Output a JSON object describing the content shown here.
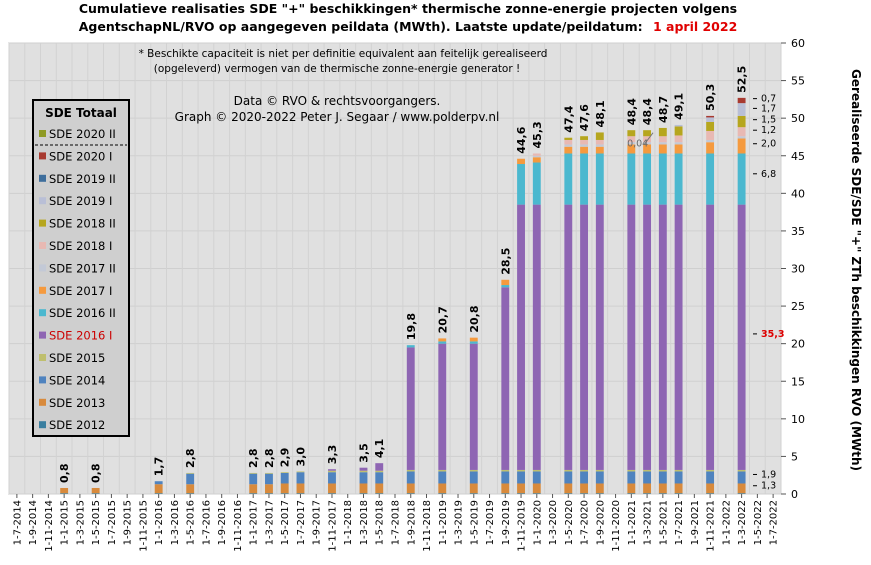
{
  "title_line1": "Cumulatieve realisaties SDE \"+\" beschikkingen*  thermische zonne-energie projecten volgens",
  "title_line2": "AgentschapNL/RVO  op aangegeven peildata (MWth).  Laatste update/peildatum:",
  "update_date": "1 april 2022",
  "note_line1": "* Beschikte capaciteit is niet per definitie equivalent aan feitelijk gerealiseerd",
  "note_line2": "(opgeleverd) vermogen van de thermische zonne-energie generator !",
  "credit_line1": "Data © RVO & rechtsvoorgangers.",
  "credit_line2": "Graph  © 2020-2022  Peter J. Segaar / www.polderpv.nl",
  "colors": {
    "SDE 2012": "#3a7fa0",
    "SDE 2013": "#d88a3c",
    "SDE 2014": "#4f83bf",
    "SDE 2015": "#bfbf6e",
    "SDE 2016 I": "#8e65b3",
    "SDE 2016 II": "#4bb8cf",
    "SDE 2017 I": "#f59a3e",
    "SDE 2017 II": "#c3c9d6",
    "SDE 2018 I": "#e8b9b3",
    "SDE 2018 II": "#b6a61e",
    "SDE 2019 I": "#b9bfd6",
    "SDE 2019 II": "#3e6e9c",
    "SDE 2020 I": "#a83a30",
    "SDE 2020 II": "#8e9a24"
  },
  "chart_data": {
    "type": "bar",
    "stacked": true,
    "x": [
      "1-7-2014",
      "1-9-2014",
      "1-11-2014",
      "1-1-2015",
      "1-3-2015",
      "1-5-2015",
      "1-7-2015",
      "1-9-2015",
      "1-11-2015",
      "1-1-2016",
      "1-3-2016",
      "1-5-2016",
      "1-7-2016",
      "1-9-2016",
      "1-11-2016",
      "1-1-2017",
      "1-3-2017",
      "1-5-2017",
      "1-7-2017",
      "1-9-2017",
      "1-11-2017",
      "1-1-2018",
      "1-3-2018",
      "1-5-2018",
      "1-7-2018",
      "1-9-2018",
      "1-11-2018",
      "1-1-2019",
      "1-3-2019",
      "1-5-2019",
      "1-7-2019",
      "1-9-2019",
      "1-11-2019",
      "1-1-2020",
      "1-3-2020",
      "1-5-2020",
      "1-7-2020",
      "1-9-2020",
      "1-11-2020",
      "1-1-2021",
      "1-3-2021",
      "1-5-2021",
      "1-7-2021",
      "1-9-2021",
      "1-11-2021",
      "1-1-2022",
      "1-3-2022",
      "1-5-2022",
      "1-7-2022"
    ],
    "ylabel": "Gerealiseerde SDE/SDE \"+\" ZTh beschikkingen RVO (MWth)",
    "ylim": [
      0,
      60
    ],
    "yticks": [
      0,
      5,
      10,
      15,
      20,
      25,
      30,
      35,
      40,
      45,
      50,
      55,
      60
    ],
    "grid": true,
    "legend_title": "SDE Totaal",
    "legend": [
      "SDE 2020 II",
      "SDE 2020 I",
      "SDE 2019 II",
      "SDE 2019 I",
      "SDE 2018 II",
      "SDE 2018 I",
      "SDE 2017 II",
      "SDE 2017 I",
      "SDE 2016 II",
      "SDE 2016 I",
      "SDE 2015",
      "SDE 2014",
      "SDE 2013",
      "SDE 2012"
    ],
    "legend_placement": "top-left",
    "stack_order": [
      "SDE 2012",
      "SDE 2013",
      "SDE 2014",
      "SDE 2015",
      "SDE 2016 I",
      "SDE 2016 II",
      "SDE 2017 I",
      "SDE 2017 II",
      "SDE 2018 I",
      "SDE 2018 II",
      "SDE 2019 I",
      "SDE 2019 II",
      "SDE 2020 I",
      "SDE 2020 II"
    ],
    "bars": [
      {
        "x": "1-1-2015",
        "total": "0,8",
        "segments": [
          0.1,
          0.7
        ]
      },
      {
        "x": "1-5-2015",
        "total": "0,8",
        "segments": [
          0.1,
          0.7
        ]
      },
      {
        "x": "1-1-2016",
        "total": "1,7",
        "segments": [
          0.1,
          1.2,
          0.4
        ]
      },
      {
        "x": "1-5-2016",
        "total": "2,8",
        "segments": [
          0.1,
          1.2,
          1.4,
          0.1
        ]
      },
      {
        "x": "1-1-2017",
        "total": "2,8",
        "segments": [
          0.1,
          1.2,
          1.4,
          0.1
        ]
      },
      {
        "x": "1-3-2017",
        "total": "2,8",
        "segments": [
          0.1,
          1.2,
          1.4,
          0.1
        ]
      },
      {
        "x": "1-5-2017",
        "total": "2,9",
        "segments": [
          0.1,
          1.3,
          1.4,
          0.1
        ]
      },
      {
        "x": "1-7-2017",
        "total": "3,0",
        "segments": [
          0.1,
          1.3,
          1.5,
          0.1
        ]
      },
      {
        "x": "1-11-2017",
        "total": "3,3",
        "segments": [
          0.1,
          1.3,
          1.5,
          0.2,
          0.2
        ]
      },
      {
        "x": "1-3-2018",
        "total": "3,5",
        "segments": [
          0.1,
          1.3,
          1.5,
          0.2,
          0.4
        ]
      },
      {
        "x": "1-5-2018",
        "total": "4,1",
        "segments": [
          0.1,
          1.3,
          1.5,
          0.2,
          1.0
        ]
      },
      {
        "x": "1-9-2018",
        "total": "19,8",
        "segments": [
          0.1,
          1.3,
          1.6,
          0.2,
          16.3,
          0.3
        ]
      },
      {
        "x": "1-1-2019",
        "total": "20,7",
        "segments": [
          0.1,
          1.3,
          1.6,
          0.2,
          16.8,
          0.3,
          0.4
        ]
      },
      {
        "x": "1-5-2019",
        "total": "20,8",
        "segments": [
          0.1,
          1.3,
          1.6,
          0.2,
          16.8,
          0.3,
          0.5
        ]
      },
      {
        "x": "1-9-2019",
        "total": "28,5",
        "segments": [
          0.1,
          1.3,
          1.6,
          0.2,
          24.3,
          0.3,
          0.7
        ]
      },
      {
        "x": "1-11-2019",
        "total": "44,6",
        "segments": [
          0.1,
          1.3,
          1.6,
          0.2,
          35.3,
          5.4,
          0.7
        ]
      },
      {
        "x": "1-1-2020",
        "total": "45,3",
        "segments": [
          0.1,
          1.3,
          1.6,
          0.2,
          35.3,
          5.6,
          0.7,
          0.2,
          0.3
        ]
      },
      {
        "x": "1-5-2020",
        "total": "47,4",
        "segments": [
          0.1,
          1.3,
          1.6,
          0.2,
          35.3,
          6.8,
          0.9,
          0.3,
          0.6,
          0.3
        ]
      },
      {
        "x": "1-7-2020",
        "total": "47,6",
        "segments": [
          0.1,
          1.3,
          1.6,
          0.2,
          35.3,
          6.8,
          0.9,
          0.3,
          0.6,
          0.5
        ]
      },
      {
        "x": "1-9-2020",
        "total": "48,1",
        "segments": [
          0.1,
          1.3,
          1.6,
          0.2,
          35.3,
          6.8,
          0.9,
          0.3,
          0.6,
          1.0
        ]
      },
      {
        "x": "1-1-2021",
        "total": "48,4",
        "segments": [
          0.1,
          1.3,
          1.6,
          0.2,
          35.3,
          6.8,
          1.2,
          0.3,
          0.8,
          0.8
        ]
      },
      {
        "x": "1-3-2021",
        "total": "48,4",
        "segments": [
          0.1,
          1.3,
          1.6,
          0.2,
          35.3,
          6.8,
          1.2,
          0.3,
          0.8,
          0.8
        ]
      },
      {
        "x": "1-5-2021",
        "total": "48,7",
        "segments": [
          0.1,
          1.3,
          1.6,
          0.2,
          35.3,
          6.8,
          1.2,
          0.3,
          0.8,
          1.1
        ]
      },
      {
        "x": "1-7-2021",
        "total": "49,1",
        "segments": [
          0.1,
          1.3,
          1.6,
          0.2,
          35.3,
          6.8,
          1.2,
          0.3,
          0.9,
          1.2,
          0.2
        ]
      },
      {
        "x": "1-11-2021",
        "total": "50,3",
        "segments": [
          0.1,
          1.3,
          1.6,
          0.2,
          35.3,
          6.8,
          1.5,
          0.3,
          1.2,
          1.2,
          0.6,
          0.0,
          0.2
        ]
      },
      {
        "x": "1-3-2022",
        "total": "52,5",
        "segments": [
          0.1,
          1.3,
          1.6,
          0.2,
          35.3,
          6.8,
          2.0,
          0.3,
          1.2,
          1.5,
          1.7,
          0.0,
          0.7
        ]
      }
    ],
    "annotations": [
      {
        "text": "0,04",
        "x": "1-3-2021",
        "y": 46.2
      },
      {
        "text": "35,3",
        "y": 20.9,
        "color": "#dd0000"
      },
      {
        "text": "6,8",
        "y": 42.2
      },
      {
        "text": "2,0",
        "y": 46.2
      },
      {
        "text": "1,2",
        "y": 48.0
      },
      {
        "text": "1,5",
        "y": 49.4
      },
      {
        "text": "1,7",
        "y": 50.9
      },
      {
        "text": "0,7",
        "y": 52.2
      },
      {
        "text": "1,9",
        "y": 2.2
      },
      {
        "text": "1,3",
        "y": 0.7
      }
    ]
  }
}
